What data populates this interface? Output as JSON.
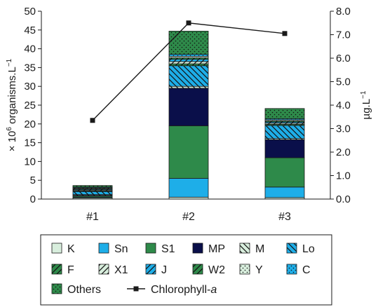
{
  "chart_data": {
    "type": "bar",
    "stacked": true,
    "categories": [
      "#1",
      "#2",
      "#3"
    ],
    "ylabel_main": "× 10",
    "ylabel_sup": "6",
    "ylabel_rest": " organisms.L",
    "ylabel_rest_sup": "−1",
    "ylim": [
      0,
      50
    ],
    "yticks": [
      "0",
      "5",
      "10",
      "15",
      "20",
      "25",
      "30",
      "35",
      "40",
      "45",
      "50"
    ],
    "y2label_main": "µg.L",
    "y2label_sup": "−1",
    "y2lim": [
      0,
      8
    ],
    "y2ticks": [
      "0.0",
      "1.0",
      "2.0",
      "3.0",
      "4.0",
      "5.0",
      "6.0",
      "7.0",
      "8.0"
    ],
    "series": [
      {
        "name": "K",
        "color": "#d8eedd",
        "pattern": "none",
        "values": [
          0.3,
          0.5,
          0.4
        ]
      },
      {
        "name": "Sn",
        "color": "#1eaee8",
        "pattern": "none",
        "values": [
          0.2,
          5.0,
          2.8
        ]
      },
      {
        "name": "S1",
        "color": "#2e8a4a",
        "pattern": "none",
        "values": [
          0.3,
          14.0,
          7.8
        ]
      },
      {
        "name": "MP",
        "color": "#0a0f4a",
        "pattern": "none",
        "values": [
          0.2,
          10.0,
          4.8
        ]
      },
      {
        "name": "M",
        "color": "#d8eedd",
        "pattern": "diagdown",
        "values": [
          0.2,
          0.5,
          0.3
        ]
      },
      {
        "name": "Lo",
        "color": "#1eaee8",
        "pattern": "diagdown",
        "values": [
          0.8,
          5.5,
          3.5
        ]
      },
      {
        "name": "F",
        "color": "#2e8a4a",
        "pattern": "diagup",
        "values": [
          0.2,
          0.5,
          0.3
        ]
      },
      {
        "name": "X1",
        "color": "#d8eedd",
        "pattern": "diagup",
        "values": [
          0.2,
          0.6,
          0.3
        ]
      },
      {
        "name": "J",
        "color": "#1eaee8",
        "pattern": "diagup",
        "values": [
          0.2,
          0.6,
          0.3
        ]
      },
      {
        "name": "W2",
        "color": "#2e8a4a",
        "pattern": "diagup",
        "values": [
          0.2,
          0.4,
          0.3
        ]
      },
      {
        "name": "Y",
        "color": "#d8eedd",
        "pattern": "dots",
        "values": [
          0.2,
          0.4,
          0.3
        ]
      },
      {
        "name": "C",
        "color": "#1eaee8",
        "pattern": "dots",
        "values": [
          0.2,
          0.5,
          0.3
        ]
      },
      {
        "name": "Others",
        "color": "#2e8a4a",
        "pattern": "dots",
        "values": [
          0.4,
          6.2,
          2.7
        ]
      }
    ],
    "line_series": {
      "name": "Chlorophyll-",
      "name_italic": "a",
      "axis": "right",
      "values": [
        3.35,
        7.5,
        7.05
      ]
    },
    "legend_position": "bottom",
    "grid": false
  }
}
